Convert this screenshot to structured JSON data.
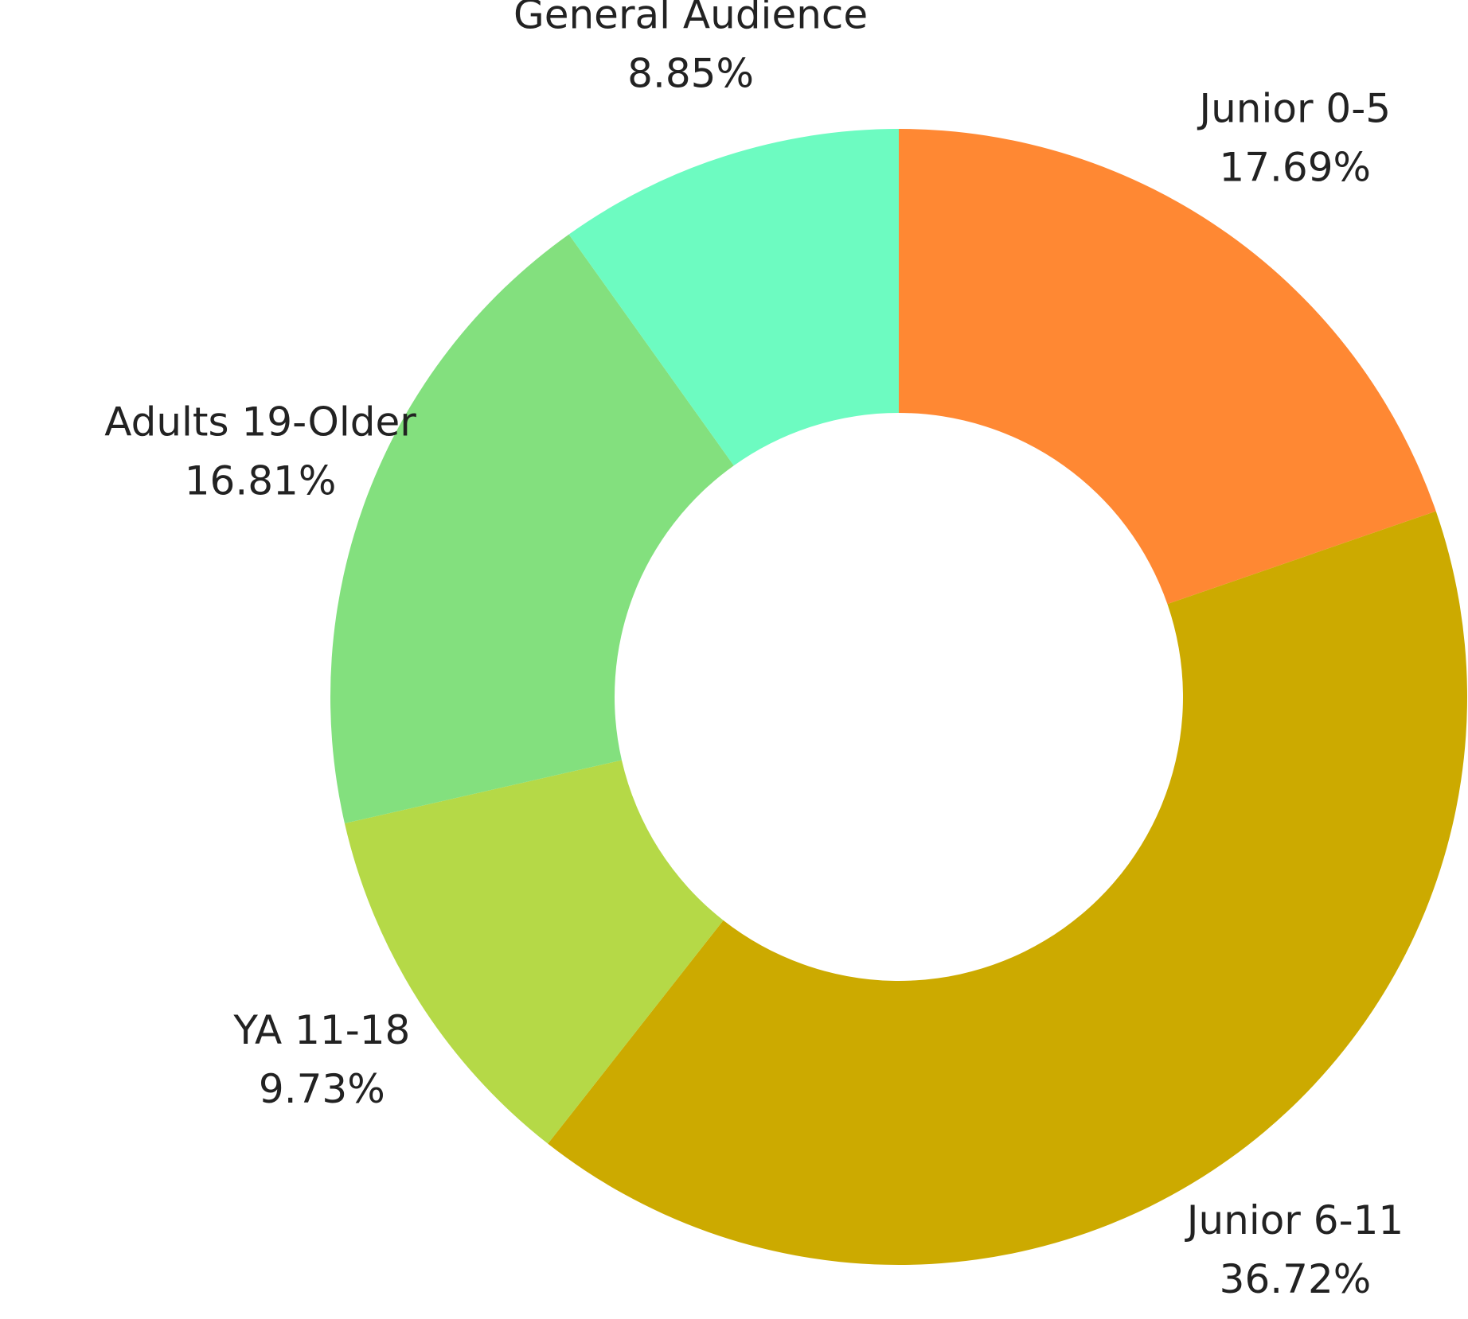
{
  "chart_data": {
    "type": "pie",
    "categories": [
      "Junior 0-5",
      "Junior 6-11",
      "YA 11-18",
      "Adults 19-Older",
      "General Audience"
    ],
    "values": [
      17.69,
      36.72,
      9.73,
      16.81,
      8.85
    ],
    "value_labels": [
      "17.69%",
      "36.72%",
      "9.73%",
      "16.81%",
      "8.85%"
    ],
    "colors": [
      "#ff8833",
      "#ccaa00",
      "#b5d947",
      "#83e07e",
      "#6dfbc1"
    ],
    "donut": true
  }
}
